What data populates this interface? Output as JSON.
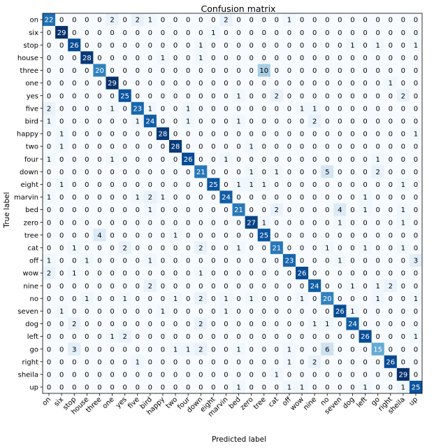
{
  "chart_data": {
    "type": "heatmap",
    "title": "Confusion matrix",
    "xlabel": "Predicted label",
    "ylabel": "True label",
    "colormap": "Blues",
    "colors": {
      "low": "#f7fbff",
      "high": "#08306b",
      "text_light": "#ffffff",
      "text_dark": "#000000"
    },
    "vmax": 29,
    "labels": [
      "on",
      "six",
      "stop",
      "house",
      "three",
      "one",
      "yes",
      "five",
      "bird",
      "happy",
      "two",
      "four",
      "down",
      "eight",
      "marvin",
      "bed",
      "zero",
      "tree",
      "cat",
      "off",
      "wow",
      "nine",
      "no",
      "seven",
      "dog",
      "left",
      "go",
      "right",
      "sheila",
      "up"
    ],
    "matrix": [
      [
        22,
        0,
        0,
        0,
        0,
        2,
        0,
        2,
        1,
        0,
        0,
        0,
        0,
        0,
        2,
        0,
        0,
        0,
        0,
        1,
        0,
        0,
        0,
        0,
        0,
        0,
        0,
        0,
        0,
        0
      ],
      [
        0,
        29,
        0,
        0,
        0,
        0,
        0,
        0,
        0,
        0,
        0,
        0,
        0,
        1,
        0,
        0,
        0,
        0,
        0,
        0,
        0,
        0,
        0,
        0,
        0,
        0,
        0,
        0,
        0,
        0
      ],
      [
        0,
        0,
        26,
        0,
        0,
        0,
        0,
        0,
        0,
        0,
        0,
        0,
        1,
        0,
        0,
        0,
        0,
        0,
        0,
        0,
        0,
        0,
        0,
        0,
        1,
        0,
        1,
        0,
        0,
        1
      ],
      [
        0,
        0,
        0,
        28,
        0,
        0,
        0,
        0,
        0,
        1,
        0,
        0,
        1,
        0,
        0,
        0,
        0,
        0,
        0,
        0,
        0,
        0,
        0,
        0,
        0,
        0,
        0,
        0,
        0,
        0
      ],
      [
        0,
        0,
        0,
        0,
        20,
        0,
        0,
        0,
        0,
        0,
        0,
        0,
        0,
        0,
        0,
        0,
        0,
        10,
        0,
        0,
        0,
        0,
        0,
        0,
        0,
        0,
        0,
        0,
        0,
        0
      ],
      [
        0,
        0,
        0,
        0,
        0,
        29,
        0,
        0,
        0,
        0,
        0,
        0,
        0,
        0,
        0,
        0,
        0,
        0,
        0,
        0,
        0,
        0,
        0,
        0,
        0,
        0,
        0,
        1,
        0,
        0
      ],
      [
        0,
        0,
        0,
        0,
        0,
        0,
        25,
        0,
        0,
        0,
        0,
        0,
        0,
        0,
        0,
        1,
        0,
        0,
        2,
        0,
        0,
        0,
        0,
        0,
        0,
        0,
        0,
        0,
        2,
        0
      ],
      [
        2,
        0,
        0,
        0,
        0,
        1,
        0,
        23,
        1,
        0,
        0,
        1,
        0,
        0,
        0,
        0,
        0,
        0,
        0,
        0,
        1,
        1,
        0,
        0,
        0,
        0,
        0,
        0,
        0,
        0
      ],
      [
        1,
        0,
        0,
        0,
        0,
        0,
        0,
        1,
        24,
        0,
        0,
        1,
        0,
        0,
        0,
        1,
        0,
        0,
        0,
        0,
        0,
        2,
        0,
        0,
        0,
        0,
        0,
        0,
        0,
        0
      ],
      [
        0,
        1,
        0,
        0,
        0,
        0,
        0,
        0,
        0,
        28,
        0,
        0,
        0,
        0,
        0,
        0,
        0,
        0,
        0,
        0,
        0,
        0,
        0,
        0,
        0,
        0,
        0,
        0,
        0,
        1
      ],
      [
        0,
        1,
        0,
        0,
        0,
        0,
        0,
        0,
        0,
        0,
        28,
        0,
        0,
        0,
        0,
        0,
        1,
        0,
        0,
        0,
        0,
        0,
        0,
        0,
        0,
        0,
        0,
        0,
        0,
        0
      ],
      [
        1,
        0,
        0,
        0,
        0,
        1,
        0,
        0,
        0,
        0,
        0,
        26,
        0,
        0,
        1,
        0,
        0,
        0,
        0,
        0,
        0,
        0,
        0,
        0,
        0,
        0,
        1,
        0,
        0,
        0
      ],
      [
        0,
        0,
        0,
        0,
        0,
        0,
        0,
        0,
        0,
        0,
        0,
        0,
        21,
        0,
        0,
        0,
        1,
        0,
        1,
        0,
        0,
        0,
        5,
        0,
        0,
        0,
        2,
        0,
        0,
        0
      ],
      [
        0,
        1,
        0,
        0,
        0,
        0,
        0,
        0,
        0,
        0,
        0,
        0,
        0,
        25,
        0,
        1,
        1,
        1,
        0,
        0,
        0,
        0,
        0,
        0,
        0,
        0,
        0,
        0,
        1,
        0
      ],
      [
        1,
        0,
        0,
        0,
        0,
        0,
        0,
        1,
        2,
        1,
        0,
        0,
        0,
        0,
        24,
        0,
        0,
        0,
        0,
        0,
        0,
        0,
        0,
        0,
        0,
        1,
        0,
        0,
        0,
        0
      ],
      [
        0,
        0,
        0,
        0,
        0,
        0,
        0,
        0,
        1,
        0,
        0,
        0,
        0,
        0,
        0,
        21,
        0,
        0,
        2,
        0,
        0,
        0,
        0,
        4,
        0,
        1,
        0,
        0,
        1,
        0
      ],
      [
        0,
        0,
        0,
        0,
        0,
        0,
        0,
        0,
        0,
        0,
        0,
        0,
        0,
        0,
        0,
        0,
        27,
        1,
        0,
        0,
        0,
        0,
        0,
        1,
        0,
        0,
        0,
        0,
        1,
        0
      ],
      [
        0,
        0,
        0,
        0,
        4,
        0,
        0,
        0,
        0,
        0,
        1,
        0,
        0,
        0,
        0,
        0,
        0,
        25,
        0,
        0,
        0,
        0,
        0,
        0,
        0,
        0,
        0,
        0,
        0,
        0
      ],
      [
        0,
        0,
        1,
        0,
        0,
        0,
        2,
        0,
        0,
        0,
        0,
        0,
        2,
        0,
        0,
        1,
        0,
        0,
        21,
        0,
        0,
        0,
        1,
        0,
        0,
        1,
        0,
        0,
        1,
        0
      ],
      [
        1,
        0,
        0,
        1,
        0,
        0,
        0,
        0,
        1,
        0,
        0,
        0,
        0,
        0,
        0,
        0,
        0,
        0,
        0,
        23,
        0,
        0,
        0,
        1,
        0,
        0,
        0,
        0,
        0,
        3
      ],
      [
        2,
        0,
        1,
        0,
        0,
        0,
        0,
        0,
        0,
        0,
        0,
        0,
        1,
        0,
        0,
        0,
        0,
        0,
        0,
        0,
        26,
        0,
        0,
        0,
        0,
        0,
        0,
        0,
        0,
        0
      ],
      [
        0,
        0,
        0,
        0,
        0,
        0,
        0,
        0,
        2,
        0,
        0,
        0,
        0,
        0,
        0,
        0,
        0,
        0,
        0,
        0,
        0,
        24,
        0,
        0,
        1,
        0,
        1,
        2,
        0,
        0
      ],
      [
        0,
        0,
        0,
        1,
        0,
        0,
        1,
        0,
        0,
        0,
        1,
        0,
        2,
        0,
        1,
        0,
        1,
        0,
        0,
        0,
        1,
        0,
        20,
        0,
        0,
        0,
        1,
        0,
        0,
        1
      ],
      [
        0,
        1,
        0,
        0,
        0,
        0,
        0,
        0,
        0,
        1,
        0,
        0,
        0,
        0,
        1,
        0,
        0,
        0,
        0,
        0,
        0,
        0,
        0,
        26,
        1,
        0,
        0,
        0,
        0,
        0
      ],
      [
        0,
        0,
        2,
        0,
        0,
        0,
        0,
        0,
        0,
        0,
        0,
        0,
        2,
        0,
        0,
        0,
        0,
        0,
        0,
        0,
        0,
        1,
        1,
        0,
        24,
        0,
        0,
        0,
        0,
        0
      ],
      [
        0,
        0,
        0,
        0,
        0,
        1,
        2,
        0,
        0,
        0,
        0,
        0,
        0,
        0,
        0,
        0,
        0,
        0,
        0,
        0,
        0,
        0,
        0,
        0,
        0,
        26,
        0,
        0,
        0,
        1
      ],
      [
        0,
        0,
        3,
        0,
        0,
        0,
        0,
        0,
        0,
        0,
        1,
        1,
        2,
        0,
        0,
        1,
        0,
        0,
        0,
        1,
        0,
        0,
        6,
        0,
        0,
        0,
        15,
        0,
        0,
        0
      ],
      [
        0,
        0,
        0,
        0,
        0,
        0,
        0,
        1,
        0,
        0,
        0,
        0,
        0,
        0,
        0,
        0,
        0,
        0,
        0,
        1,
        0,
        2,
        0,
        0,
        0,
        0,
        0,
        26,
        0,
        0
      ],
      [
        0,
        0,
        0,
        0,
        0,
        0,
        0,
        0,
        0,
        0,
        0,
        0,
        0,
        0,
        0,
        0,
        0,
        0,
        1,
        0,
        0,
        0,
        0,
        0,
        0,
        0,
        0,
        0,
        29,
        0
      ],
      [
        0,
        0,
        0,
        0,
        0,
        0,
        0,
        0,
        0,
        0,
        0,
        0,
        0,
        0,
        0,
        1,
        0,
        0,
        0,
        1,
        1,
        0,
        0,
        0,
        0,
        1,
        0,
        0,
        1,
        25
      ]
    ]
  }
}
